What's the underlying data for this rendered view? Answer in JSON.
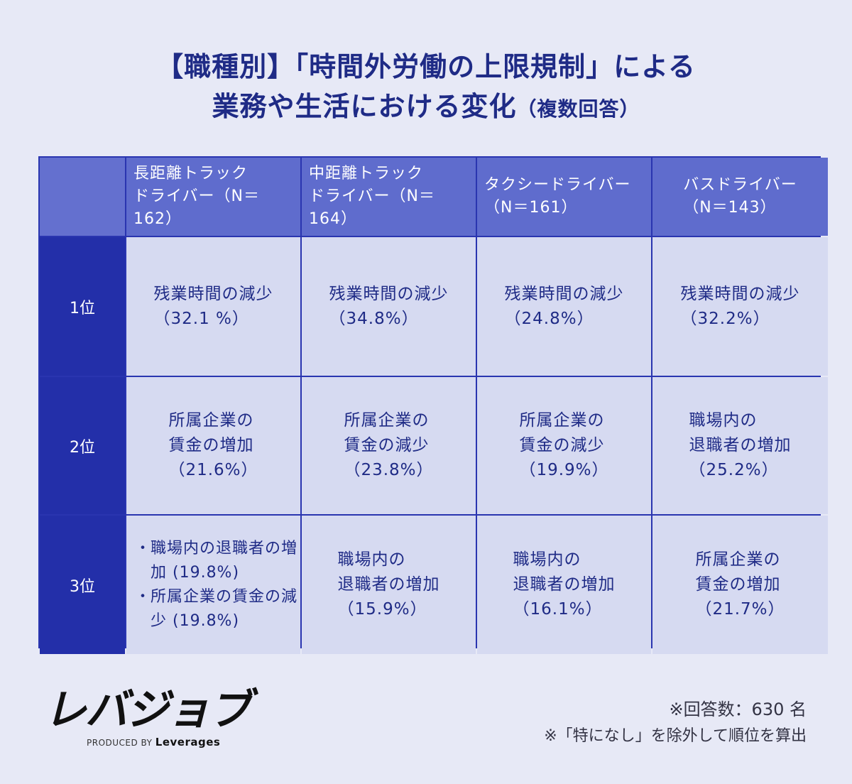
{
  "title": {
    "line1": "【職種別】「時間外労働の上限規制」による",
    "line2_main": "業務や生活における変化",
    "line2_small": "（複数回答）"
  },
  "chart_data": {
    "type": "table",
    "columns": [
      {
        "line1": "長距離トラック",
        "line2": "ドライバー（N＝162）"
      },
      {
        "line1": "中距離トラック",
        "line2": "ドライバー（N＝164）"
      },
      {
        "line1": "タクシードライバー",
        "line2": "（N＝161）"
      },
      {
        "line1": "バスドライバー",
        "line2": "（N＝143）"
      }
    ],
    "rows": [
      {
        "rank": "1位",
        "cells": [
          {
            "lines": [
              "残業時間の減少",
              "（32.1 %）"
            ]
          },
          {
            "lines": [
              "残業時間の減少",
              "（34.8%）"
            ]
          },
          {
            "lines": [
              "残業時間の減少",
              "（24.8%）"
            ]
          },
          {
            "lines": [
              "残業時間の減少",
              "（32.2%）"
            ]
          }
        ]
      },
      {
        "rank": "2位",
        "cells": [
          {
            "lines": [
              "所属企業の",
              "賃金の増加",
              "（21.6%）"
            ]
          },
          {
            "lines": [
              "所属企業の",
              "賃金の減少",
              "（23.8%）"
            ]
          },
          {
            "lines": [
              "所属企業の",
              "賃金の減少",
              "（19.9%）"
            ]
          },
          {
            "lines": [
              "職場内の",
              "退職者の増加",
              "（25.2%）"
            ]
          }
        ]
      },
      {
        "rank": "3位",
        "cells": [
          {
            "bullets": [
              {
                "text": "職場内の退職者の増加 (19.8%)"
              },
              {
                "text": "所属企業の賃金の減少 (19.8%)"
              }
            ]
          },
          {
            "lines": [
              "職場内の",
              "退職者の増加",
              "（15.9%）"
            ]
          },
          {
            "lines": [
              "職場内の",
              "退職者の増加",
              "（16.1%）"
            ]
          },
          {
            "lines": [
              "所属企業の",
              "賃金の増加",
              "（21.7%）"
            ]
          }
        ]
      }
    ]
  },
  "logo": {
    "word": "レバジョブ",
    "produced_by": "PRODUCED BY",
    "brand": "Leverages"
  },
  "notes": {
    "respondents": "※回答数：630 名",
    "exclusion": "※「特になし」を除外して順位を算出"
  },
  "colors": {
    "background": "#e7e9f6",
    "header": "#5f6ccd",
    "rank": "#232fa9",
    "cell": "#d6daf1",
    "text": "#1f2b86"
  }
}
